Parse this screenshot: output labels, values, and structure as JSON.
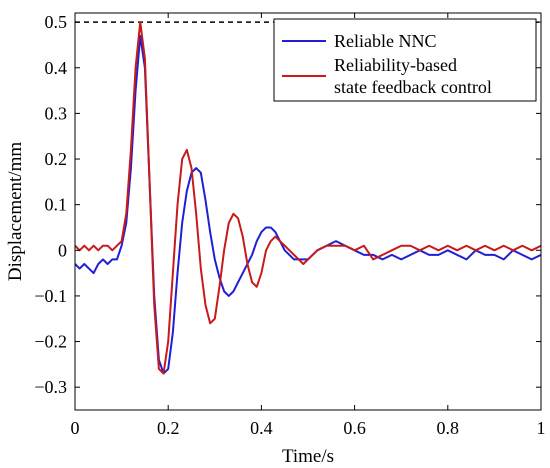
{
  "chart_data": {
    "type": "line",
    "title": "",
    "xlabel": "Time/s",
    "ylabel": "Displacement/mm",
    "xlim": [
      0,
      1
    ],
    "ylim": [
      -0.35,
      0.52
    ],
    "xticks": [
      0,
      0.2,
      0.4,
      0.6,
      0.8,
      1
    ],
    "xtick_labels": [
      "0",
      "0.2",
      "0.4",
      "0.6",
      "0.8",
      "1"
    ],
    "yticks": [
      -0.3,
      -0.2,
      -0.1,
      0,
      0.1,
      0.2,
      0.3,
      0.4,
      0.5
    ],
    "ytick_labels": [
      "−0.3",
      "−0.2",
      "−0.1",
      "0",
      "0.1",
      "0.2",
      "0.3",
      "0.4",
      "0.5"
    ],
    "grid": false,
    "legend_position": "top-right",
    "reference_line": {
      "y": 0.5,
      "style": "dashed",
      "color": "#000000"
    },
    "series": [
      {
        "name": "Reliable NNC",
        "color": "#1f1fd6",
        "x": [
          0,
          0.01,
          0.02,
          0.03,
          0.04,
          0.05,
          0.06,
          0.07,
          0.08,
          0.09,
          0.1,
          0.11,
          0.12,
          0.13,
          0.14,
          0.15,
          0.16,
          0.17,
          0.18,
          0.19,
          0.2,
          0.21,
          0.22,
          0.23,
          0.24,
          0.25,
          0.26,
          0.27,
          0.28,
          0.29,
          0.3,
          0.31,
          0.32,
          0.33,
          0.34,
          0.35,
          0.36,
          0.37,
          0.38,
          0.39,
          0.4,
          0.41,
          0.42,
          0.43,
          0.44,
          0.45,
          0.46,
          0.47,
          0.48,
          0.49,
          0.5,
          0.52,
          0.54,
          0.56,
          0.58,
          0.6,
          0.62,
          0.64,
          0.66,
          0.68,
          0.7,
          0.72,
          0.74,
          0.76,
          0.78,
          0.8,
          0.82,
          0.84,
          0.86,
          0.88,
          0.9,
          0.92,
          0.94,
          0.96,
          0.98,
          1.0
        ],
        "y": [
          -0.03,
          -0.04,
          -0.03,
          -0.04,
          -0.05,
          -0.03,
          -0.02,
          -0.03,
          -0.02,
          -0.02,
          0.01,
          0.06,
          0.18,
          0.35,
          0.47,
          0.4,
          0.15,
          -0.1,
          -0.24,
          -0.27,
          -0.26,
          -0.18,
          -0.05,
          0.06,
          0.13,
          0.17,
          0.18,
          0.17,
          0.11,
          0.04,
          -0.02,
          -0.06,
          -0.09,
          -0.1,
          -0.09,
          -0.07,
          -0.05,
          -0.03,
          -0.01,
          0.02,
          0.04,
          0.05,
          0.05,
          0.04,
          0.02,
          0.0,
          -0.01,
          -0.02,
          -0.02,
          -0.02,
          -0.02,
          0.0,
          0.01,
          0.02,
          0.01,
          0.0,
          -0.01,
          -0.01,
          -0.02,
          -0.01,
          -0.02,
          -0.01,
          0.0,
          -0.01,
          -0.01,
          0.0,
          -0.01,
          -0.02,
          0.0,
          -0.01,
          -0.01,
          -0.02,
          0.0,
          -0.01,
          -0.02,
          -0.01
        ]
      },
      {
        "name": "Reliability-based state feedback control",
        "color": "#c81a1a",
        "x": [
          0,
          0.01,
          0.02,
          0.03,
          0.04,
          0.05,
          0.06,
          0.07,
          0.08,
          0.09,
          0.1,
          0.11,
          0.12,
          0.13,
          0.14,
          0.15,
          0.16,
          0.17,
          0.18,
          0.19,
          0.2,
          0.21,
          0.22,
          0.23,
          0.24,
          0.25,
          0.26,
          0.27,
          0.28,
          0.29,
          0.3,
          0.31,
          0.32,
          0.33,
          0.34,
          0.35,
          0.36,
          0.37,
          0.38,
          0.39,
          0.4,
          0.41,
          0.42,
          0.43,
          0.44,
          0.45,
          0.46,
          0.47,
          0.48,
          0.49,
          0.5,
          0.52,
          0.54,
          0.56,
          0.58,
          0.6,
          0.62,
          0.64,
          0.66,
          0.68,
          0.7,
          0.72,
          0.74,
          0.76,
          0.78,
          0.8,
          0.82,
          0.84,
          0.86,
          0.88,
          0.9,
          0.92,
          0.94,
          0.96,
          0.98,
          1.0
        ],
        "y": [
          0.01,
          0.0,
          0.01,
          0.0,
          0.01,
          0.0,
          0.01,
          0.01,
          0.0,
          0.01,
          0.02,
          0.08,
          0.22,
          0.4,
          0.5,
          0.42,
          0.15,
          -0.12,
          -0.26,
          -0.27,
          -0.2,
          -0.05,
          0.1,
          0.2,
          0.22,
          0.18,
          0.08,
          -0.04,
          -0.12,
          -0.16,
          -0.15,
          -0.08,
          0.0,
          0.06,
          0.08,
          0.07,
          0.03,
          -0.03,
          -0.07,
          -0.08,
          -0.05,
          0.0,
          0.02,
          0.03,
          0.02,
          0.01,
          0.0,
          -0.01,
          -0.02,
          -0.03,
          -0.02,
          0.0,
          0.01,
          0.01,
          0.01,
          0.0,
          0.01,
          -0.02,
          -0.01,
          0.0,
          0.01,
          0.01,
          0.0,
          0.01,
          0.0,
          0.01,
          0.0,
          0.01,
          0.0,
          0.01,
          0.0,
          0.01,
          0.0,
          0.01,
          0.0,
          0.01
        ]
      }
    ]
  }
}
